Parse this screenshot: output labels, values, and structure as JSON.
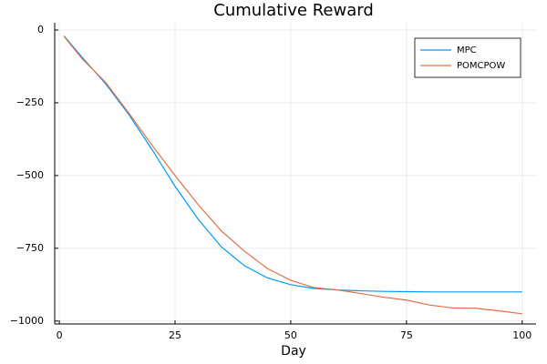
{
  "chart_data": {
    "type": "line",
    "title": "Cumulative Reward",
    "xlabel": "Day",
    "x": [
      1,
      5,
      10,
      15,
      20,
      25,
      30,
      35,
      40,
      45,
      50,
      55,
      60,
      65,
      70,
      75,
      80,
      85,
      90,
      95,
      100
    ],
    "series": [
      {
        "name": "MPC",
        "color": "#009af9",
        "values": [
          -20,
          -95,
          -185,
          -290,
          -410,
          -537,
          -650,
          -745,
          -810,
          -852,
          -875,
          -888,
          -893,
          -896,
          -898,
          -899,
          -900,
          -900,
          -900,
          -900,
          -900
        ]
      },
      {
        "name": "POMCPOW",
        "color": "#e26f46",
        "values": [
          -22,
          -100,
          -180,
          -285,
          -395,
          -500,
          -600,
          -690,
          -760,
          -820,
          -860,
          -885,
          -893,
          -905,
          -918,
          -928,
          -945,
          -955,
          -956,
          -965,
          -975
        ]
      }
    ],
    "xlim": [
      -1,
      103
    ],
    "xticks": [
      0,
      25,
      50,
      75,
      100
    ],
    "ylim": [
      -1010,
      25
    ],
    "yticks": [
      {
        "value": -1000,
        "label": "−1000"
      },
      {
        "value": -750,
        "label": "−750"
      },
      {
        "value": -500,
        "label": "−500"
      },
      {
        "value": -250,
        "label": "−250"
      },
      0
    ],
    "grid": true,
    "legend": "top-right"
  }
}
